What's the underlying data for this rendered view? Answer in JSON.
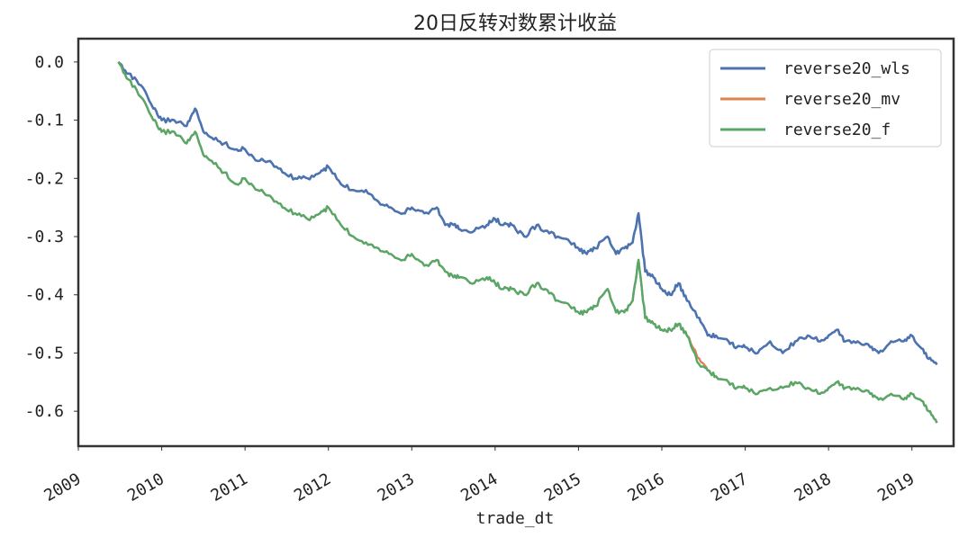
{
  "chart_data": {
    "type": "line",
    "title": "20日反转对数累计收益",
    "xlabel": "trade_dt",
    "ylabel": "",
    "xlim": [
      2009.0,
      2019.5
    ],
    "ylim": [
      -0.66,
      0.04
    ],
    "x_ticks": [
      2009,
      2010,
      2011,
      2012,
      2013,
      2014,
      2015,
      2016,
      2017,
      2018,
      2019
    ],
    "x_tick_labels": [
      "2009",
      "2010",
      "2011",
      "2012",
      "2013",
      "2014",
      "2015",
      "2016",
      "2017",
      "2018",
      "2019"
    ],
    "y_ticks": [
      0.0,
      -0.1,
      -0.2,
      -0.3,
      -0.4,
      -0.5,
      -0.6
    ],
    "y_tick_labels": [
      "0.0",
      "-0.1",
      "-0.2",
      "-0.3",
      "-0.4",
      "-0.5",
      "-0.6"
    ],
    "grid": false,
    "legend_position": "top-right",
    "series": [
      {
        "name": "reverse20_wls",
        "color": "#4c72b0",
        "x": [
          2009.48,
          2009.6,
          2009.75,
          2009.9,
          2010.0,
          2010.15,
          2010.3,
          2010.4,
          2010.5,
          2010.6,
          2010.75,
          2010.9,
          2011.0,
          2011.15,
          2011.3,
          2011.45,
          2011.6,
          2011.75,
          2011.9,
          2012.0,
          2012.15,
          2012.3,
          2012.45,
          2012.6,
          2012.75,
          2012.9,
          2013.0,
          2013.15,
          2013.3,
          2013.4,
          2013.5,
          2013.6,
          2013.75,
          2013.9,
          2014.0,
          2014.1,
          2014.2,
          2014.35,
          2014.5,
          2014.6,
          2014.75,
          2014.9,
          2015.0,
          2015.1,
          2015.2,
          2015.35,
          2015.45,
          2015.55,
          2015.65,
          2015.72,
          2015.8,
          2015.9,
          2016.0,
          2016.1,
          2016.2,
          2016.3,
          2016.45,
          2016.55,
          2016.65,
          2016.8,
          2016.9,
          2017.0,
          2017.15,
          2017.3,
          2017.45,
          2017.6,
          2017.75,
          2017.9,
          2018.0,
          2018.1,
          2018.2,
          2018.35,
          2018.5,
          2018.6,
          2018.75,
          2018.9,
          2019.0,
          2019.1,
          2019.2,
          2019.3
        ],
        "values": [
          0.0,
          -0.02,
          -0.04,
          -0.08,
          -0.1,
          -0.1,
          -0.11,
          -0.08,
          -0.12,
          -0.13,
          -0.14,
          -0.15,
          -0.15,
          -0.17,
          -0.17,
          -0.19,
          -0.2,
          -0.2,
          -0.19,
          -0.18,
          -0.21,
          -0.22,
          -0.22,
          -0.24,
          -0.25,
          -0.26,
          -0.25,
          -0.26,
          -0.25,
          -0.28,
          -0.28,
          -0.29,
          -0.29,
          -0.28,
          -0.27,
          -0.28,
          -0.28,
          -0.3,
          -0.28,
          -0.29,
          -0.3,
          -0.31,
          -0.32,
          -0.33,
          -0.32,
          -0.3,
          -0.33,
          -0.32,
          -0.31,
          -0.26,
          -0.36,
          -0.37,
          -0.39,
          -0.4,
          -0.38,
          -0.41,
          -0.44,
          -0.47,
          -0.47,
          -0.48,
          -0.49,
          -0.49,
          -0.5,
          -0.48,
          -0.5,
          -0.48,
          -0.47,
          -0.48,
          -0.47,
          -0.46,
          -0.48,
          -0.48,
          -0.49,
          -0.5,
          -0.48,
          -0.48,
          -0.47,
          -0.49,
          -0.51,
          -0.52
        ]
      },
      {
        "name": "reverse20_mv",
        "color": "#dd8452",
        "x": [
          2009.48,
          2009.6,
          2009.75,
          2009.9,
          2010.0,
          2010.15,
          2010.3,
          2010.4,
          2010.5,
          2010.6,
          2010.75,
          2010.9,
          2011.0,
          2011.15,
          2011.3,
          2011.45,
          2011.6,
          2011.75,
          2011.9,
          2012.0,
          2012.15,
          2012.3,
          2012.45,
          2012.6,
          2012.75,
          2012.9,
          2013.0,
          2013.15,
          2013.3,
          2013.4,
          2013.5,
          2013.6,
          2013.75,
          2013.9,
          2014.0,
          2014.1,
          2014.2,
          2014.35,
          2014.5,
          2014.6,
          2014.75,
          2014.9,
          2015.0,
          2015.1,
          2015.2,
          2015.35,
          2015.45,
          2015.55,
          2015.65,
          2015.72,
          2015.8,
          2015.9,
          2016.0,
          2016.1,
          2016.2,
          2016.3,
          2016.45,
          2016.55,
          2016.65,
          2016.8,
          2016.9,
          2017.0,
          2017.15,
          2017.3,
          2017.45,
          2017.6,
          2017.75,
          2017.9,
          2018.0,
          2018.1,
          2018.2,
          2018.35,
          2018.5,
          2018.6,
          2018.75,
          2018.9,
          2019.0,
          2019.1,
          2019.2,
          2019.3
        ],
        "values": [
          0.0,
          -0.03,
          -0.06,
          -0.1,
          -0.12,
          -0.12,
          -0.14,
          -0.12,
          -0.16,
          -0.17,
          -0.19,
          -0.21,
          -0.2,
          -0.22,
          -0.23,
          -0.25,
          -0.26,
          -0.27,
          -0.26,
          -0.25,
          -0.28,
          -0.3,
          -0.31,
          -0.32,
          -0.33,
          -0.34,
          -0.33,
          -0.35,
          -0.34,
          -0.36,
          -0.37,
          -0.37,
          -0.38,
          -0.37,
          -0.38,
          -0.39,
          -0.39,
          -0.4,
          -0.38,
          -0.39,
          -0.41,
          -0.42,
          -0.43,
          -0.43,
          -0.42,
          -0.39,
          -0.43,
          -0.43,
          -0.41,
          -0.34,
          -0.44,
          -0.45,
          -0.46,
          -0.46,
          -0.45,
          -0.47,
          -0.51,
          -0.53,
          -0.54,
          -0.55,
          -0.56,
          -0.56,
          -0.57,
          -0.56,
          -0.56,
          -0.55,
          -0.56,
          -0.57,
          -0.56,
          -0.55,
          -0.56,
          -0.56,
          -0.57,
          -0.58,
          -0.57,
          -0.58,
          -0.57,
          -0.58,
          -0.6,
          -0.62
        ]
      },
      {
        "name": "reverse20_f",
        "color": "#55a868",
        "x": [
          2009.48,
          2009.6,
          2009.75,
          2009.9,
          2010.0,
          2010.15,
          2010.3,
          2010.4,
          2010.5,
          2010.6,
          2010.75,
          2010.9,
          2011.0,
          2011.15,
          2011.3,
          2011.45,
          2011.6,
          2011.75,
          2011.9,
          2012.0,
          2012.15,
          2012.3,
          2012.45,
          2012.6,
          2012.75,
          2012.9,
          2013.0,
          2013.15,
          2013.3,
          2013.4,
          2013.5,
          2013.6,
          2013.75,
          2013.9,
          2014.0,
          2014.1,
          2014.2,
          2014.35,
          2014.5,
          2014.6,
          2014.75,
          2014.9,
          2015.0,
          2015.1,
          2015.2,
          2015.35,
          2015.45,
          2015.55,
          2015.65,
          2015.72,
          2015.8,
          2015.9,
          2016.0,
          2016.1,
          2016.2,
          2016.3,
          2016.45,
          2016.55,
          2016.65,
          2016.8,
          2016.9,
          2017.0,
          2017.15,
          2017.3,
          2017.45,
          2017.6,
          2017.75,
          2017.9,
          2018.0,
          2018.1,
          2018.2,
          2018.35,
          2018.5,
          2018.6,
          2018.75,
          2018.9,
          2019.0,
          2019.1,
          2019.2,
          2019.3
        ],
        "values": [
          0.0,
          -0.03,
          -0.06,
          -0.1,
          -0.12,
          -0.12,
          -0.14,
          -0.12,
          -0.16,
          -0.17,
          -0.19,
          -0.21,
          -0.2,
          -0.22,
          -0.23,
          -0.25,
          -0.26,
          -0.27,
          -0.26,
          -0.25,
          -0.28,
          -0.3,
          -0.31,
          -0.32,
          -0.33,
          -0.34,
          -0.33,
          -0.35,
          -0.34,
          -0.36,
          -0.37,
          -0.37,
          -0.38,
          -0.37,
          -0.38,
          -0.39,
          -0.39,
          -0.4,
          -0.38,
          -0.39,
          -0.41,
          -0.42,
          -0.43,
          -0.43,
          -0.42,
          -0.39,
          -0.43,
          -0.43,
          -0.41,
          -0.34,
          -0.44,
          -0.45,
          -0.46,
          -0.46,
          -0.45,
          -0.47,
          -0.52,
          -0.53,
          -0.54,
          -0.55,
          -0.56,
          -0.56,
          -0.57,
          -0.56,
          -0.56,
          -0.55,
          -0.56,
          -0.57,
          -0.56,
          -0.55,
          -0.56,
          -0.56,
          -0.57,
          -0.58,
          -0.57,
          -0.58,
          -0.57,
          -0.58,
          -0.6,
          -0.62
        ]
      }
    ]
  }
}
